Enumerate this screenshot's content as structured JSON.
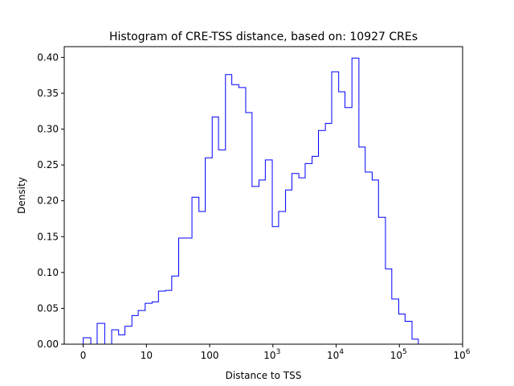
{
  "chart_data": {
    "type": "step-histogram",
    "title": "Histogram of CRE-TSS distance, based on: 10927 CREs",
    "xlabel": "Distance to TSS",
    "ylabel": "Density",
    "x_scale": "symlog",
    "xlim": [
      -0.3,
      6
    ],
    "ylim": [
      0,
      0.415
    ],
    "grid": false,
    "line_color": "#0000ff",
    "x_ticks": [
      {
        "value": 0,
        "label": "0"
      },
      {
        "value": 10,
        "label": "10"
      },
      {
        "value": 100,
        "label": "100"
      },
      {
        "value": 1000,
        "label": "10",
        "exp": "3"
      },
      {
        "value": 10000,
        "label": "10",
        "exp": "4"
      },
      {
        "value": 100000,
        "label": "10",
        "exp": "5"
      },
      {
        "value": 1000000,
        "label": "10",
        "exp": "6"
      }
    ],
    "y_ticks": [
      "0.00",
      "0.05",
      "0.10",
      "0.15",
      "0.20",
      "0.25",
      "0.30",
      "0.35",
      "0.40"
    ],
    "y_tick_values": [
      0,
      0.05,
      0.1,
      0.15,
      0.2,
      0.25,
      0.3,
      0.35,
      0.4
    ],
    "bin_edges": [
      0,
      0.12,
      0.22,
      0.34,
      0.45,
      0.56,
      0.66,
      0.77,
      0.87,
      0.98,
      1.09,
      1.19,
      1.3,
      1.4,
      1.51,
      1.61,
      1.72,
      1.83,
      1.93,
      2.04,
      2.14,
      2.25,
      2.35,
      2.46,
      2.57,
      2.67,
      2.78,
      2.88,
      2.99,
      3.09,
      3.2,
      3.3,
      3.41,
      3.51,
      3.62,
      3.72,
      3.83,
      3.93,
      4.04,
      4.14,
      4.25,
      4.36,
      4.46,
      4.57,
      4.67,
      4.78,
      4.88,
      4.99,
      5.09,
      5.2,
      5.3,
      5.41,
      5.51
    ],
    "densities": [
      0.009,
      0,
      0.029,
      0,
      0.02,
      0.013,
      0.025,
      0.04,
      0.047,
      0.057,
      0.059,
      0.074,
      0.075,
      0.095,
      0.148,
      0.148,
      0.205,
      0.185,
      0.26,
      0.317,
      0.271,
      0.376,
      0.362,
      0.358,
      0.323,
      0.22,
      0.229,
      0.257,
      0.164,
      0.185,
      0.215,
      0.238,
      0.232,
      0.252,
      0.262,
      0.298,
      0.308,
      0.38,
      0.352,
      0.33,
      0.399,
      0.275,
      0.24,
      0.229,
      0.177,
      0.105,
      0.063,
      0.042,
      0.032,
      0.007,
      0,
      0
    ]
  }
}
